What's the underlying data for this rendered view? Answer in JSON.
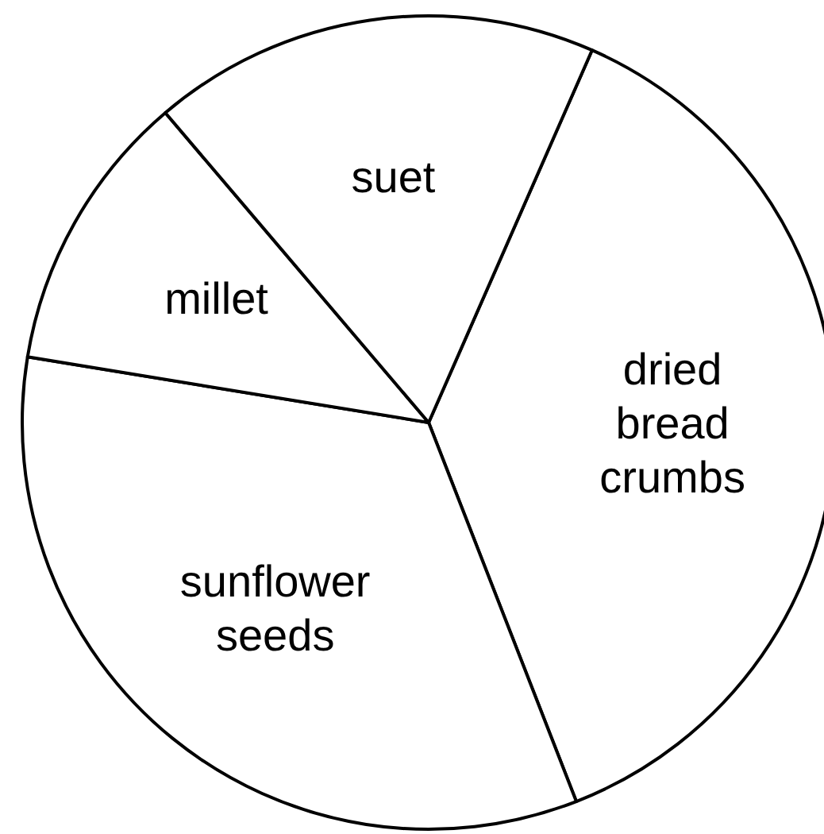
{
  "chart_data": {
    "type": "pie",
    "categories": [
      "dried bread crumbs",
      "sunflower seeds",
      "millet",
      "suet"
    ],
    "values": [
      37.5,
      33.5,
      11.2,
      17.8
    ],
    "colors": [
      "#ffffff",
      "#ffffff",
      "#ffffff",
      "#ffffff"
    ]
  }
}
